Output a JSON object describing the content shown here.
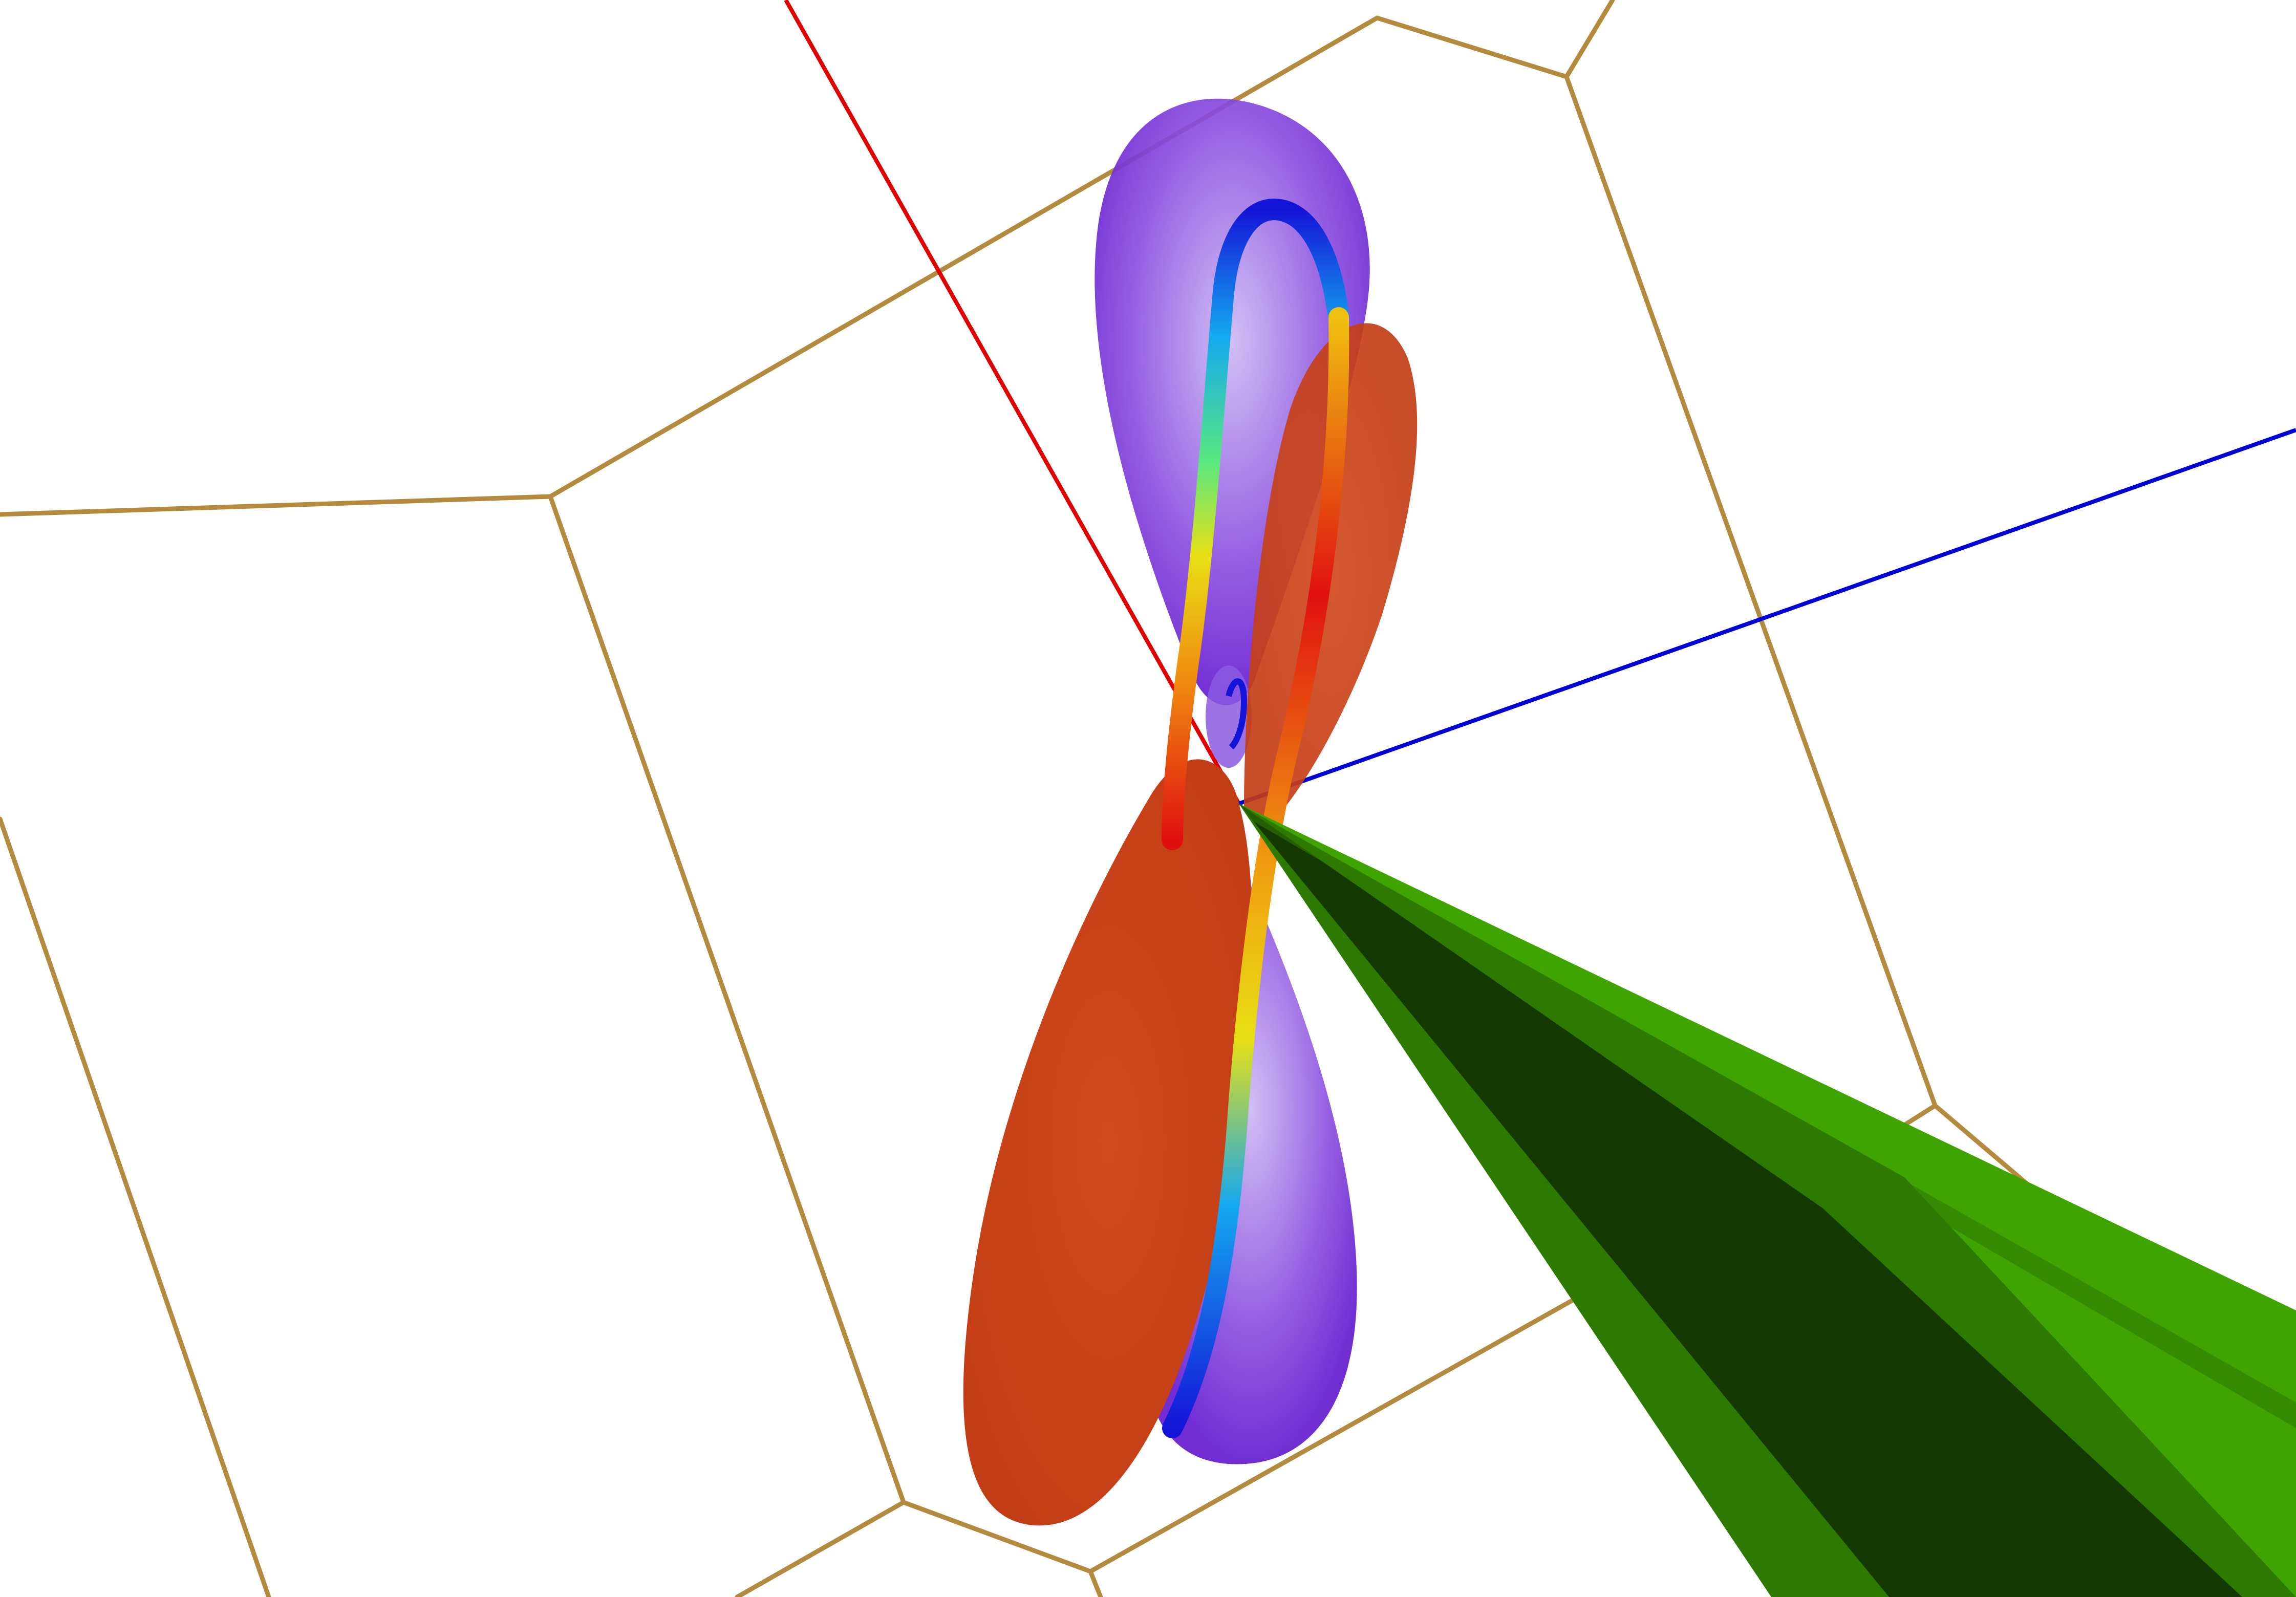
{
  "scene": {
    "background": "#ffffff",
    "colors": {
      "grid": "#b38a3e",
      "axis_x": "#e00000",
      "axis_z": "#0000d8",
      "lobe_positive": "#c8441b",
      "lobe_negative": "#7a35d6",
      "probe_light": "#3fa300",
      "probe_mid": "#2e7a00",
      "probe_dark": "#133800",
      "tube_gradient": [
        "#1414d8",
        "#14a8f0",
        "#58e880",
        "#e8e014",
        "#f08a10",
        "#e01010"
      ]
    },
    "icons": [
      "hexagonal-grid",
      "axis-lines",
      "orbital-lobes",
      "trajectory-tube",
      "green-probe-cone"
    ]
  }
}
